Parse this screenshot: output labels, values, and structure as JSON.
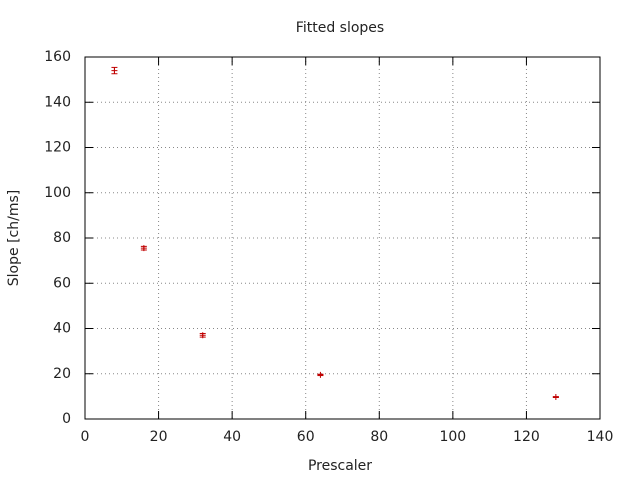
{
  "chart_data": {
    "type": "scatter",
    "title": "Fitted slopes",
    "x_label": "Prescaler",
    "y_label": "Slope [ch/ms]",
    "series": [
      {
        "color": "#c00000",
        "x": [
          8,
          16,
          32,
          64,
          128
        ],
        "values": [
          154,
          75.5,
          37,
          19.5,
          9.7
        ],
        "errors": [
          1.4,
          0.8,
          0.8,
          0.3,
          0.2
        ]
      }
    ],
    "xlim": [
      0,
      140
    ],
    "xticks": [
      0,
      20,
      40,
      60,
      80,
      100,
      120,
      140
    ],
    "ylim": [
      0,
      160
    ],
    "yticks": [
      0,
      20,
      40,
      60,
      80,
      100,
      120,
      140,
      160
    ],
    "grid": true
  }
}
